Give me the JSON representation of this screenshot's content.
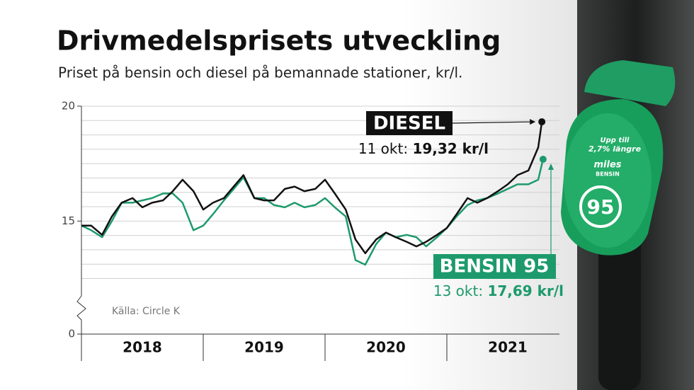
{
  "chart_data": {
    "type": "line",
    "title": "Drivmedelsprisets utveckling",
    "subtitle": "Priset på bensin och diesel på bemannade stationer, kr/l.",
    "source": "Källa: Circle K",
    "xlim": [
      2018,
      2022
    ],
    "xticks": [
      {
        "value": 2018.5,
        "label": "2018"
      },
      {
        "value": 2019.5,
        "label": "2019"
      },
      {
        "value": 2020.5,
        "label": "2020"
      },
      {
        "value": 2021.5,
        "label": "2021"
      }
    ],
    "ylim": [
      12.3,
      20
    ],
    "yticks": [
      0,
      15,
      20
    ],
    "minor_yticks": [
      12.5,
      13.125,
      13.75,
      14.375,
      15,
      15.625,
      16.25,
      16.875,
      17.5,
      18.125,
      18.75,
      19.375,
      20
    ],
    "axis_break": true,
    "grid": true,
    "series": [
      {
        "name": "DIESEL",
        "color": "#111111",
        "x": [
          2018,
          2018.08,
          2018.17,
          2018.25,
          2018.33,
          2018.42,
          2018.5,
          2018.58,
          2018.67,
          2018.75,
          2018.83,
          2018.92,
          2019,
          2019.08,
          2019.17,
          2019.25,
          2019.33,
          2019.42,
          2019.5,
          2019.58,
          2019.67,
          2019.75,
          2019.83,
          2019.92,
          2020,
          2020.08,
          2020.17,
          2020.25,
          2020.33,
          2020.42,
          2020.5,
          2020.58,
          2020.67,
          2020.75,
          2020.83,
          2020.92,
          2021,
          2021.08,
          2021.17,
          2021.25,
          2021.33,
          2021.42,
          2021.5,
          2021.58,
          2021.67,
          2021.75,
          2021.78
        ],
        "values": [
          14.8,
          14.8,
          14.4,
          15.2,
          15.8,
          16.0,
          15.6,
          15.8,
          15.9,
          16.3,
          16.8,
          16.3,
          15.5,
          15.8,
          16.0,
          16.5,
          17.0,
          16.0,
          15.9,
          15.9,
          16.4,
          16.5,
          16.3,
          16.4,
          16.8,
          16.2,
          15.5,
          14.2,
          13.6,
          14.2,
          14.5,
          14.3,
          14.1,
          13.9,
          14.1,
          14.4,
          14.7,
          15.3,
          16.0,
          15.8,
          16.0,
          16.3,
          16.6,
          17.0,
          17.2,
          18.2,
          19.32
        ]
      },
      {
        "name": "BENSIN 95",
        "color": "#1d9a6c",
        "x": [
          2018,
          2018.08,
          2018.17,
          2018.25,
          2018.33,
          2018.42,
          2018.5,
          2018.58,
          2018.67,
          2018.75,
          2018.83,
          2018.92,
          2019,
          2019.08,
          2019.17,
          2019.25,
          2019.33,
          2019.42,
          2019.5,
          2019.58,
          2019.67,
          2019.75,
          2019.83,
          2019.92,
          2020,
          2020.08,
          2020.17,
          2020.25,
          2020.33,
          2020.42,
          2020.5,
          2020.58,
          2020.67,
          2020.75,
          2020.83,
          2020.92,
          2021,
          2021.08,
          2021.17,
          2021.25,
          2021.33,
          2021.42,
          2021.5,
          2021.58,
          2021.67,
          2021.75,
          2021.79
        ],
        "values": [
          14.8,
          14.6,
          14.3,
          15.0,
          15.8,
          15.8,
          15.9,
          16.0,
          16.2,
          16.2,
          15.8,
          14.6,
          14.8,
          15.3,
          15.9,
          16.4,
          16.9,
          16.0,
          16.0,
          15.7,
          15.6,
          15.8,
          15.6,
          15.7,
          16.0,
          15.6,
          15.2,
          13.3,
          13.1,
          14.0,
          14.5,
          14.3,
          14.4,
          14.3,
          13.9,
          14.3,
          14.7,
          15.2,
          15.7,
          15.9,
          16.0,
          16.2,
          16.4,
          16.6,
          16.6,
          16.8,
          17.69
        ]
      }
    ],
    "annotations": {
      "diesel_date": "11 okt:",
      "diesel_value": "19,32 kr/l",
      "bensin_date": "13 okt:",
      "bensin_value": "17,69 kr/l"
    }
  },
  "photo_texts": {
    "line1": "Upp till",
    "line2": "2,7% längre",
    "brand": "miles",
    "fuel": "BENSIN",
    "grade": "95"
  }
}
